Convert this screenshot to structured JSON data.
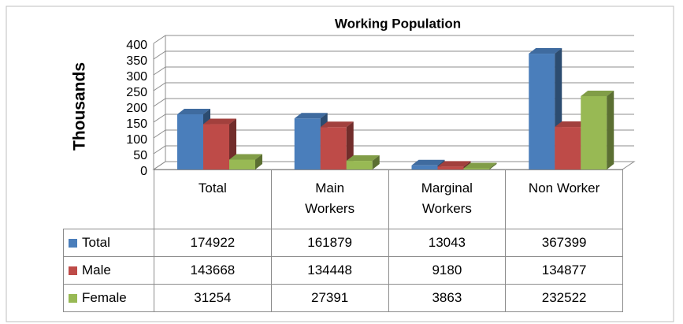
{
  "chart_data": {
    "type": "bar3d",
    "title": "Working Population",
    "ylabel": "Thousands",
    "categories": [
      "Total",
      "Main Workers",
      "Marginal Workers",
      "Non Worker"
    ],
    "ylim": [
      0,
      400
    ],
    "yticks": [
      0,
      50,
      100,
      150,
      200,
      250,
      300,
      350,
      400
    ],
    "grid": true,
    "series": [
      {
        "name": "Total",
        "color": "#4a7ebb",
        "values": [
          174.922,
          161.879,
          13.043,
          367.399
        ],
        "value_labels": [
          "174922",
          "161879",
          "13043",
          "367399"
        ]
      },
      {
        "name": "Male",
        "color": "#be4b48",
        "values": [
          143.668,
          134.448,
          9.18,
          134.877
        ],
        "value_labels": [
          "143668",
          "134448",
          "9180",
          "134877"
        ]
      },
      {
        "name": "Female",
        "color": "#98b954",
        "values": [
          31.254,
          27.391,
          3.863,
          232.522
        ],
        "value_labels": [
          "31254",
          "27391",
          "3863",
          "232522"
        ]
      }
    ]
  }
}
